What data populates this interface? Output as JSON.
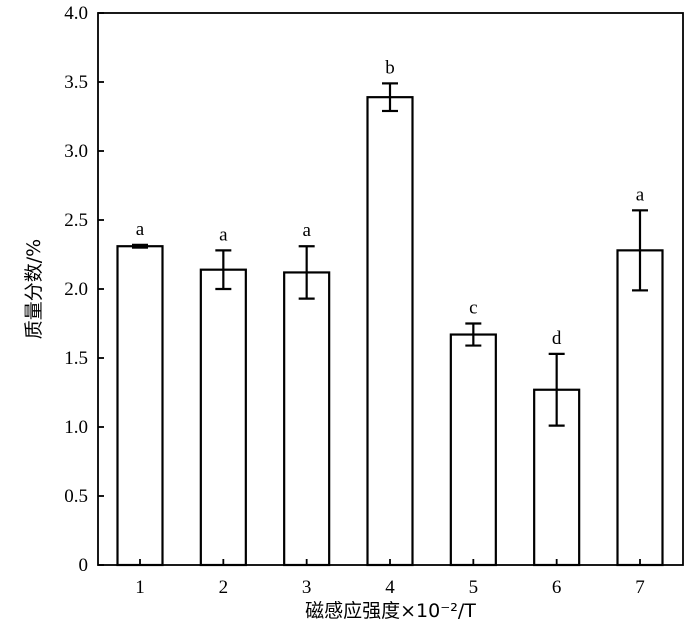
{
  "chart_data": {
    "type": "bar",
    "xlabel": "磁感应强度×10⁻²/T",
    "ylabel": "质量分数/%",
    "categories": [
      "1",
      "2",
      "3",
      "4",
      "5",
      "6",
      "7"
    ],
    "values": [
      2.31,
      2.14,
      2.12,
      3.39,
      1.67,
      1.27,
      2.28
    ],
    "errors": [
      0.01,
      0.14,
      0.19,
      0.1,
      0.08,
      0.26,
      0.29
    ],
    "significance_labels": [
      "a",
      "a",
      "a",
      "b",
      "c",
      "d",
      "a"
    ],
    "ylim": [
      0,
      4.0
    ],
    "yticks": [
      0,
      0.5,
      1.0,
      1.5,
      2.0,
      2.5,
      3.0,
      3.5,
      4.0
    ],
    "ytick_labels": [
      "0",
      "0.5",
      "1.0",
      "1.5",
      "2.0",
      "2.5",
      "3.0",
      "3.5",
      "4.0"
    ],
    "bar_fill": "#ffffff",
    "bar_stroke": "#000000",
    "grid": false
  }
}
